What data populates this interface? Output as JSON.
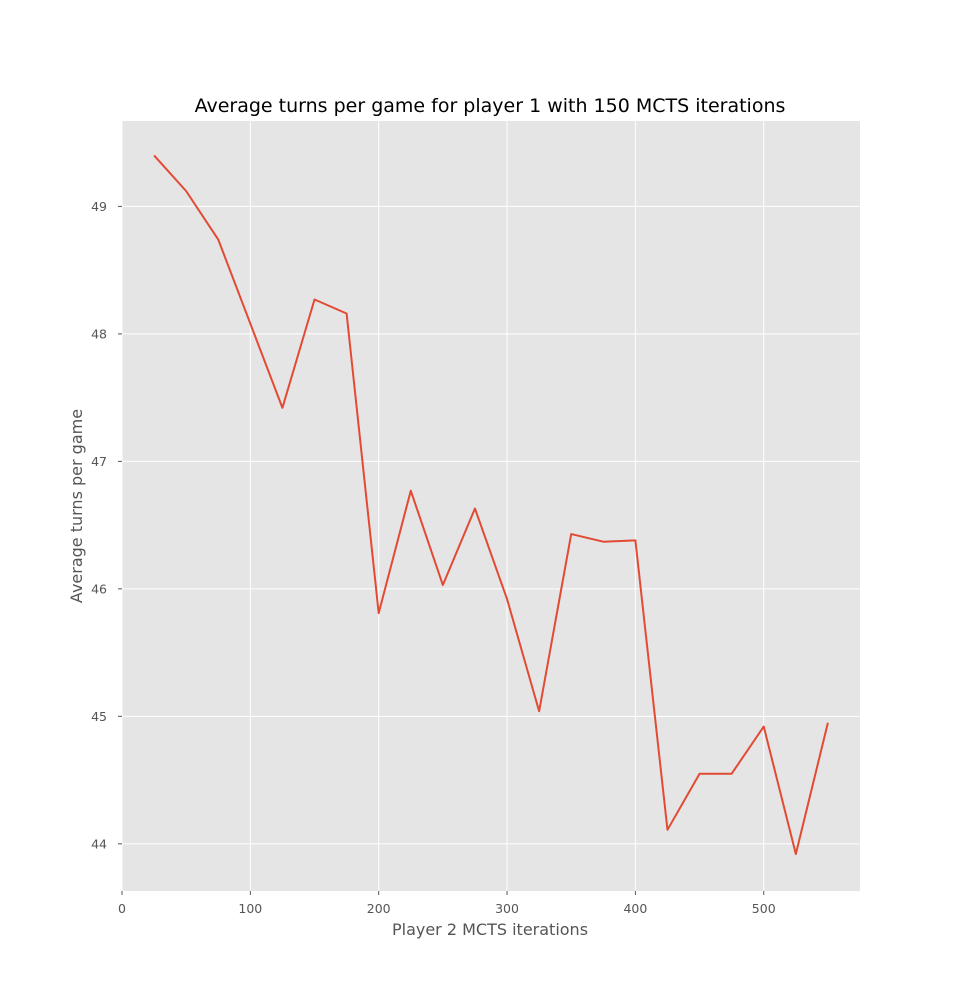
{
  "chart_data": {
    "type": "line",
    "title": "Average turns per game for player 1 with 150 MCTS iterations",
    "xlabel": "Player 2 MCTS iterations",
    "ylabel": "Average turns per game",
    "xlim": [
      0,
      575
    ],
    "ylim": [
      43.63,
      49.67
    ],
    "xticks": [
      0,
      100,
      200,
      300,
      400,
      500
    ],
    "yticks": [
      44,
      45,
      46,
      47,
      48,
      49
    ],
    "grid": true,
    "style": "ggplot",
    "colors": {
      "background": "#e5e5e5",
      "grid": "#ffffff",
      "line": "#e24a33",
      "tick_text": "#555555"
    },
    "series": [
      {
        "x": [
          25,
          50,
          75,
          100,
          125,
          150,
          175,
          200,
          225,
          250,
          275,
          300,
          325,
          350,
          375,
          400,
          425,
          450,
          475,
          500,
          525,
          550
        ],
        "y": [
          49.4,
          49.12,
          48.74,
          48.08,
          47.42,
          48.27,
          48.16,
          45.81,
          46.77,
          46.03,
          46.63,
          45.92,
          45.04,
          46.43,
          46.37,
          46.38,
          44.11,
          44.55,
          44.55,
          44.92,
          43.92,
          44.95
        ]
      }
    ]
  }
}
